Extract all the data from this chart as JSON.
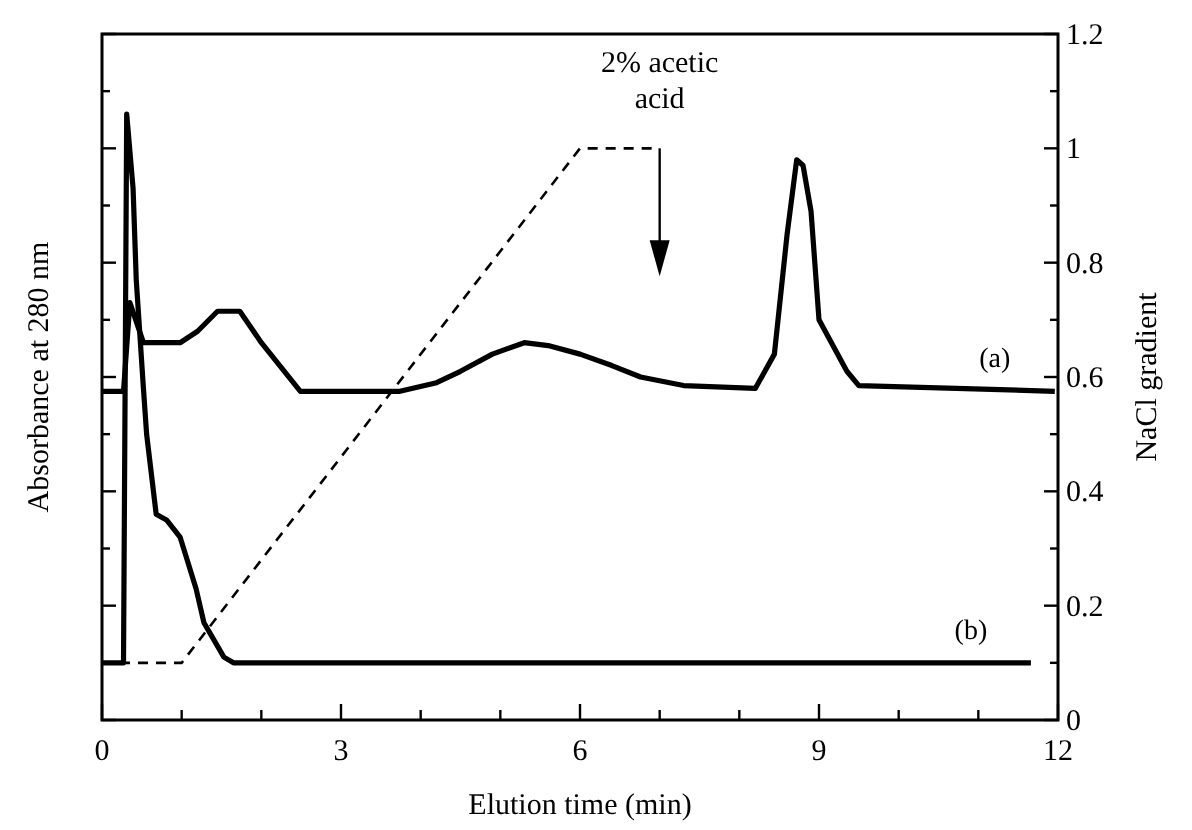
{
  "chart_data": {
    "type": "line",
    "xlabel": "Elution time (min)",
    "ylabel": "Absorbance at 280 nm",
    "y2label": "NaCl gradient",
    "xlim": [
      0,
      12
    ],
    "xticks": [
      0,
      {
        "value": 1,
        "label": null
      },
      {
        "value": 2,
        "label": null
      },
      3,
      {
        "value": 4,
        "label": null
      },
      {
        "value": 5,
        "label": null
      },
      6,
      {
        "value": 7,
        "label": null
      },
      {
        "value": 8,
        "label": null
      },
      9,
      {
        "value": 10,
        "label": null
      },
      {
        "value": 11,
        "label": null
      },
      12
    ],
    "y2lim": [
      0,
      1.2
    ],
    "y2ticks": [
      0,
      {
        "value": 0.1,
        "label": null
      },
      0.2,
      {
        "value": 0.3,
        "label": null
      },
      0.4,
      {
        "value": 0.5,
        "label": null
      },
      0.6,
      {
        "value": 0.7,
        "label": null
      },
      0.8,
      {
        "value": 0.9,
        "label": null
      },
      1,
      {
        "value": 1.1,
        "label": null
      },
      1.2
    ],
    "tick_labels": "xy2",
    "marker": "none",
    "grid": false,
    "series": [
      {
        "name": "(a)",
        "color": "#000000",
        "line_style": "solid",
        "axis": "y2",
        "x": [
          0,
          0.27,
          0.35,
          0.52,
          0.98,
          1.2,
          1.45,
          1.73,
          2.0,
          2.49,
          3.74,
          4.2,
          4.5,
          4.9,
          5.3,
          5.6,
          6.0,
          6.4,
          6.76,
          7.3,
          8.2,
          8.44,
          8.6,
          8.72,
          8.8,
          8.9,
          9.0,
          9.35,
          9.5,
          11.96
        ],
        "values": [
          0.575,
          0.575,
          0.73,
          0.66,
          0.66,
          0.68,
          0.715,
          0.715,
          0.66,
          0.575,
          0.575,
          0.59,
          0.61,
          0.64,
          0.66,
          0.655,
          0.64,
          0.62,
          0.6,
          0.585,
          0.58,
          0.64,
          0.85,
          0.98,
          0.97,
          0.89,
          0.7,
          0.61,
          0.585,
          0.575
        ]
      },
      {
        "name": "(b)",
        "color": "#000000",
        "line_style": "solid",
        "axis": "y2",
        "x": [
          0,
          0.27,
          0.31,
          0.39,
          0.43,
          0.52,
          0.56,
          0.68,
          0.81,
          0.98,
          1.18,
          1.28,
          1.53,
          1.65,
          11.66
        ],
        "values": [
          0.1,
          0.1,
          1.06,
          0.93,
          0.77,
          0.58,
          0.5,
          0.36,
          0.35,
          0.32,
          0.23,
          0.17,
          0.11,
          0.1,
          0.1
        ]
      },
      {
        "color": "#000000",
        "line_style": "dashed",
        "axis": "y2",
        "x": [
          0,
          1.0,
          6.0,
          7.0
        ],
        "values": [
          0.1,
          0.1,
          1.0,
          1.0
        ]
      }
    ],
    "annotations": [
      "2% acetic acid"
    ]
  }
}
